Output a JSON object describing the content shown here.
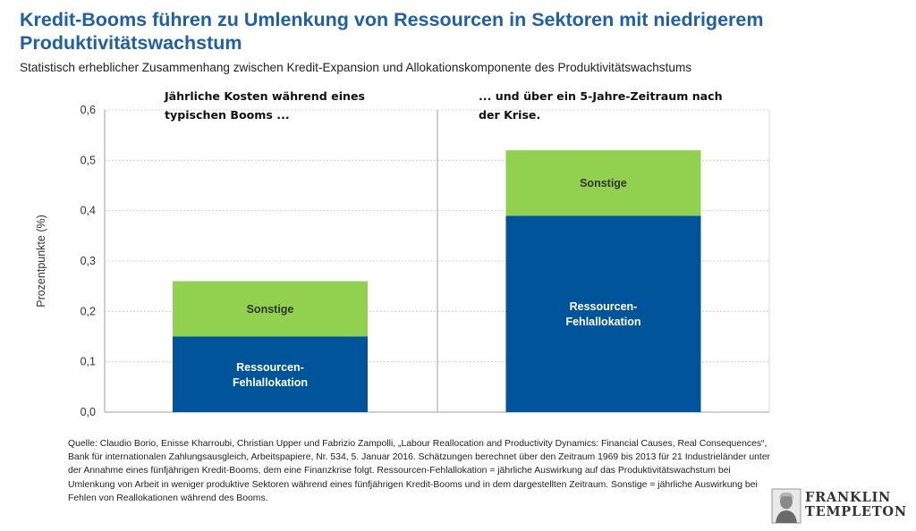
{
  "title": "Kredit-Booms führen zu Umlenkung von Ressourcen in Sektoren mit niedrigerem Produktivitätswachstum",
  "subtitle": "Statistisch erheblicher Zusammenhang zwischen Kredit-Expansion und Allokationskomponente des Produktivitätswachstums",
  "footnote": "Quelle: Claudio Borio, Enisse Kharroubi, Christian Upper und Fabrizio Zampolli, „Labour Reallocation and Productivity Dynamics: Financial Causes, Real Consequences“, Bank für internationalen Zahlungsausgleich, Arbeitspapiere, Nr. 534, 5. Januar 2016. Schätzungen berechnet über den Zeitraum 1969 bis 2013 für 21 Industrieländer unter der Annahme eines fünfjährigen Kredit-Booms, dem eine Finanzkrise folgt. Ressourcen-Fehlallokation = jährliche Auswirkung auf das Produktivitätswachstum bei Umlenkung von Arbeit in weniger produktive Sektoren während eines fünfjährigen Kredit-Booms und in dem dargestellten Zeitraum. Sonstige = jährliche Auswirkung bei Fehlen von Reallokationen während des Booms.",
  "logo": {
    "line1": "FRANKLIN",
    "line2": "TEMPLETON",
    "icon": "franklin-portrait-icon"
  },
  "chart_data": {
    "type": "bar",
    "stacked": true,
    "ylabel": "Prozentpunkte (%)",
    "ylim": [
      0,
      0.6
    ],
    "yticks": [
      "0,0",
      "0,1",
      "0,2",
      "0,3",
      "0,4",
      "0,5",
      "0,6"
    ],
    "grid": true,
    "panels": [
      {
        "title": "Jährliche Kosten während eines typischen Booms ...",
        "series": [
          {
            "name": "Ressourcen-Fehlallokation",
            "value": 0.15,
            "color": "#00549a"
          },
          {
            "name": "Sonstige",
            "value": 0.11,
            "color": "#92d050"
          }
        ]
      },
      {
        "title": "... und über ein 5-Jahre-Zeitraum nach der Krise.",
        "series": [
          {
            "name": "Ressourcen-Fehlallokation",
            "value": 0.39,
            "color": "#00549a"
          },
          {
            "name": "Sonstige",
            "value": 0.13,
            "color": "#92d050"
          }
        ]
      }
    ]
  }
}
